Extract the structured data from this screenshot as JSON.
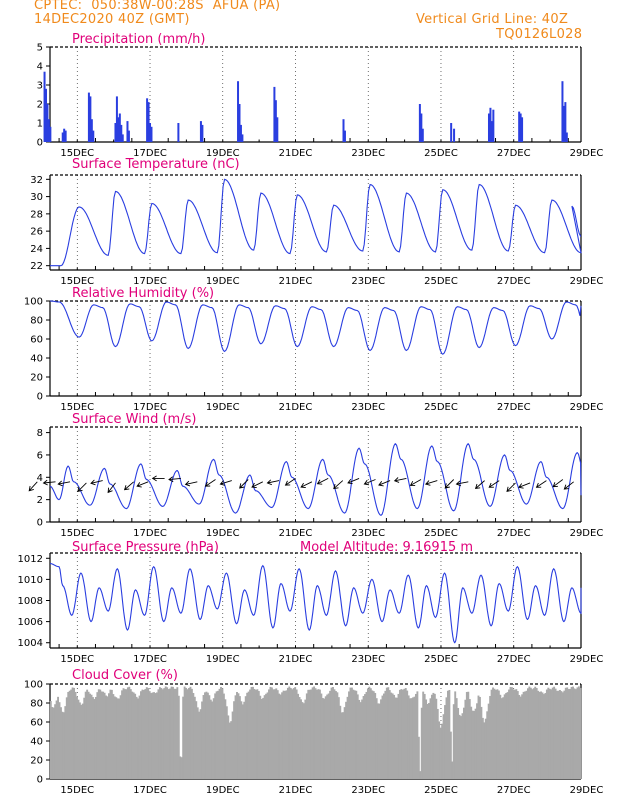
{
  "header": {
    "line1_left": "CPTEC:  050:38W-00:28S  AFUA (PA)",
    "line2_left": "14DEC2020 40Z (GMT)",
    "line2_right": "Vertical Grid Line: 40Z",
    "line3_right": "TQ0126L028",
    "text_color": "#f08a1c"
  },
  "colors": {
    "title": "#e0007a",
    "line": "#2a3ee0",
    "bar": "#2a3ee0",
    "cloud": "#a9a9a9",
    "arrow": "#000000"
  },
  "x_tick_labels": [
    "15DEC",
    "17DEC",
    "19DEC",
    "21DEC",
    "23DEC",
    "25DEC",
    "27DEC",
    "29DEC"
  ],
  "chart_data": [
    {
      "type": "bar",
      "title": "Precipitation (mm/h)",
      "ylim": [
        0,
        5
      ],
      "yticks": [
        0,
        1,
        2,
        3,
        4,
        5
      ],
      "x_unit": "days since 14DEC2020 00Z",
      "bars": [
        [
          0.6,
          3.7
        ],
        [
          0.64,
          2.8
        ],
        [
          0.68,
          2.0
        ],
        [
          0.72,
          1.2
        ],
        [
          0.76,
          0.8
        ],
        [
          1.1,
          0.5
        ],
        [
          1.14,
          0.7
        ],
        [
          1.18,
          0.6
        ],
        [
          1.82,
          2.6
        ],
        [
          1.86,
          2.4
        ],
        [
          1.9,
          1.2
        ],
        [
          1.94,
          0.6
        ],
        [
          2.55,
          1.0
        ],
        [
          2.59,
          2.4
        ],
        [
          2.63,
          1.3
        ],
        [
          2.67,
          1.5
        ],
        [
          2.71,
          0.9
        ],
        [
          2.75,
          0.4
        ],
        [
          2.88,
          1.1
        ],
        [
          2.92,
          0.6
        ],
        [
          3.42,
          2.3
        ],
        [
          3.46,
          2.1
        ],
        [
          3.5,
          1.0
        ],
        [
          3.54,
          0.8
        ],
        [
          4.28,
          1.0
        ],
        [
          4.9,
          1.1
        ],
        [
          4.94,
          0.9
        ],
        [
          5.92,
          3.2
        ],
        [
          5.96,
          2.0
        ],
        [
          6.0,
          0.9
        ],
        [
          6.04,
          0.4
        ],
        [
          6.92,
          2.9
        ],
        [
          6.96,
          2.2
        ],
        [
          7.0,
          1.3
        ],
        [
          8.82,
          1.2
        ],
        [
          8.86,
          0.6
        ],
        [
          10.92,
          2.0
        ],
        [
          10.96,
          1.5
        ],
        [
          11.0,
          0.7
        ],
        [
          11.78,
          1.0
        ],
        [
          11.86,
          0.7
        ],
        [
          12.82,
          1.5
        ],
        [
          12.86,
          1.8
        ],
        [
          12.9,
          1.1
        ],
        [
          12.94,
          1.7
        ],
        [
          13.65,
          1.6
        ],
        [
          13.69,
          1.5
        ],
        [
          13.73,
          1.3
        ],
        [
          14.84,
          3.2
        ],
        [
          14.88,
          1.9
        ],
        [
          14.92,
          2.1
        ],
        [
          14.96,
          0.5
        ]
      ]
    },
    {
      "type": "line",
      "title": "Surface Temperature (nC)",
      "ylim": [
        21.5,
        32.5
      ],
      "yticks": [
        22,
        24,
        26,
        28,
        30,
        32
      ],
      "min_val": 22.0,
      "days": {
        "max": [
          28.8,
          30.6,
          29.2,
          29.6,
          32.0,
          30.4,
          30.2,
          29.0,
          31.4,
          30.4,
          30.8,
          31.4,
          29.0,
          29.6,
          30.3
        ],
        "min": [
          22.0,
          23.2,
          23.4,
          23.4,
          23.5,
          23.8,
          23.4,
          23.6,
          23.7,
          23.6,
          23.6,
          23.8,
          23.7,
          23.5,
          23.5
        ]
      },
      "end_val": 25.4
    },
    {
      "type": "line",
      "title": "Relative Humidity (%)",
      "ylim": [
        0,
        100
      ],
      "yticks": [
        0,
        20,
        40,
        60,
        80,
        100
      ],
      "days": {
        "max": [
          98,
          96,
          97,
          99,
          96,
          96,
          95,
          94,
          93,
          93,
          94,
          94,
          93,
          95,
          99
        ],
        "min": [
          62,
          52,
          58,
          50,
          47,
          55,
          52,
          52,
          48,
          48,
          44,
          51,
          53,
          60,
          52
        ]
      },
      "start_val": 100,
      "end_val": 95
    },
    {
      "type": "line",
      "title": "Surface Wind (m/s)",
      "ylim": [
        0,
        8.5
      ],
      "yticks": [
        0,
        2,
        4,
        6,
        8
      ],
      "days": {
        "max": [
          5.0,
          4.8,
          5.2,
          4.6,
          5.6,
          4.2,
          5.4,
          5.6,
          6.6,
          7.0,
          6.8,
          7.0,
          6.0,
          5.4,
          6.2
        ],
        "min": [
          1.5,
          1.2,
          1.4,
          1.6,
          0.8,
          1.3,
          1.2,
          0.8,
          0.6,
          1.2,
          1.0,
          1.4,
          1.6,
          1.2,
          1.4
        ]
      },
      "start_val": 3.2,
      "end_val": 2.4,
      "arrows": [
        [
          0.4,
          3.6,
          -0.9,
          -1.0
        ],
        [
          0.9,
          3.6,
          -1.0,
          -0.1
        ],
        [
          1.3,
          3.6,
          -1.0,
          -0.2
        ],
        [
          1.75,
          3.5,
          -0.8,
          -0.8
        ],
        [
          2.2,
          3.7,
          -0.9,
          -0.2
        ],
        [
          2.55,
          3.5,
          -0.7,
          -0.9
        ],
        [
          3.05,
          3.6,
          -0.8,
          -0.7
        ],
        [
          3.45,
          3.6,
          -1.0,
          -0.4
        ],
        [
          3.9,
          3.9,
          -1.0,
          0.0
        ],
        [
          4.35,
          3.9,
          -1.0,
          -0.1
        ],
        [
          4.8,
          3.6,
          -0.9,
          -0.2
        ],
        [
          5.3,
          3.8,
          -0.9,
          -0.6
        ],
        [
          5.75,
          3.7,
          -1.0,
          -0.3
        ],
        [
          6.2,
          3.8,
          -0.8,
          -0.8
        ],
        [
          6.6,
          3.6,
          -1.0,
          -0.5
        ],
        [
          7.05,
          3.7,
          -1.0,
          -0.2
        ],
        [
          7.5,
          3.9,
          -0.9,
          -0.6
        ],
        [
          7.95,
          3.6,
          -1.0,
          -0.5
        ],
        [
          8.4,
          3.9,
          -1.0,
          -0.5
        ],
        [
          8.8,
          3.7,
          -0.9,
          -0.8
        ],
        [
          9.25,
          3.9,
          -1.0,
          -0.4
        ],
        [
          9.7,
          3.8,
          -1.0,
          -0.4
        ],
        [
          10.1,
          3.7,
          -1.0,
          -0.4
        ],
        [
          10.55,
          3.9,
          -1.0,
          -0.2
        ],
        [
          10.95,
          3.8,
          -0.9,
          -0.5
        ],
        [
          11.4,
          3.7,
          -1.0,
          -0.3
        ],
        [
          11.85,
          3.8,
          -0.8,
          -0.8
        ],
        [
          12.25,
          3.6,
          -1.0,
          -0.2
        ],
        [
          12.7,
          3.7,
          -0.8,
          -0.7
        ],
        [
          13.1,
          3.7,
          -0.9,
          -0.6
        ],
        [
          13.55,
          3.5,
          -0.8,
          -0.8
        ],
        [
          13.95,
          3.5,
          -1.0,
          -0.4
        ],
        [
          14.4,
          3.7,
          -0.9,
          -0.6
        ],
        [
          14.85,
          3.8,
          -0.8,
          -0.6
        ],
        [
          15.15,
          3.6,
          -0.9,
          -0.7
        ]
      ]
    },
    {
      "type": "line",
      "title": "Surface Pressure (hPa)",
      "subtitle": "Model Altitude: 9.16915 m",
      "ylim": [
        1003.5,
        1012.5
      ],
      "yticks": [
        1004,
        1006,
        1008,
        1010,
        1012
      ],
      "start_val": 1011.5,
      "cycle": {
        "max1": [
          1010.6,
          1011.0,
          1011.2,
          1011.0,
          1010.6,
          1011.3,
          1011.0,
          1010.8,
          1010.0,
          1010.4,
          1010.6,
          1010.4,
          1011.2,
          1011.0,
          1011.2
        ],
        "min1": [
          1006.0,
          1005.2,
          1006.0,
          1006.2,
          1005.8,
          1005.4,
          1005.2,
          1005.6,
          1006.0,
          1005.4,
          1004.0,
          1005.6,
          1006.2,
          1006.0,
          1006.0
        ],
        "max2": [
          1009.4,
          1009.2,
          1009.0,
          1009.2,
          1009.4,
          1009.0,
          1009.6,
          1009.4,
          1009.2,
          1009.0,
          1009.4,
          1009.2,
          1009.6,
          1009.4,
          1009.2
        ],
        "min2": [
          1006.6,
          1007.0,
          1006.6,
          1006.8,
          1007.2,
          1006.6,
          1007.0,
          1006.6,
          1006.8,
          1006.8,
          1006.4,
          1006.8,
          1007.0,
          1006.6,
          1006.8
        ]
      },
      "end_val": 1009.2
    },
    {
      "type": "bar",
      "title": "Cloud Cover (%)",
      "ylim": [
        0,
        100
      ],
      "yticks": [
        0,
        20,
        40,
        60,
        80,
        100
      ],
      "base": 96,
      "dips": [
        [
          0.15,
          35
        ],
        [
          0.3,
          45
        ],
        [
          0.45,
          50
        ],
        [
          0.6,
          60
        ],
        [
          0.85,
          75
        ],
        [
          1.1,
          70
        ],
        [
          1.6,
          78
        ],
        [
          1.95,
          85
        ],
        [
          2.3,
          88
        ],
        [
          2.6,
          84
        ],
        [
          3.15,
          86
        ],
        [
          3.6,
          90
        ],
        [
          4.35,
          4
        ],
        [
          4.85,
          72
        ],
        [
          5.2,
          83
        ],
        [
          5.7,
          60
        ],
        [
          6.05,
          80
        ],
        [
          6.6,
          85
        ],
        [
          7.1,
          90
        ],
        [
          7.7,
          80
        ],
        [
          8.3,
          85
        ],
        [
          8.8,
          70
        ],
        [
          9.3,
          82
        ],
        [
          9.8,
          80
        ],
        [
          10.25,
          86
        ],
        [
          10.7,
          84
        ],
        [
          10.92,
          3
        ],
        [
          11.15,
          80
        ],
        [
          11.5,
          55
        ],
        [
          11.8,
          15
        ],
        [
          12.05,
          65
        ],
        [
          12.4,
          70
        ],
        [
          12.7,
          60
        ],
        [
          13.2,
          86
        ],
        [
          13.7,
          88
        ],
        [
          14.3,
          90
        ],
        [
          14.8,
          92
        ]
      ]
    }
  ]
}
